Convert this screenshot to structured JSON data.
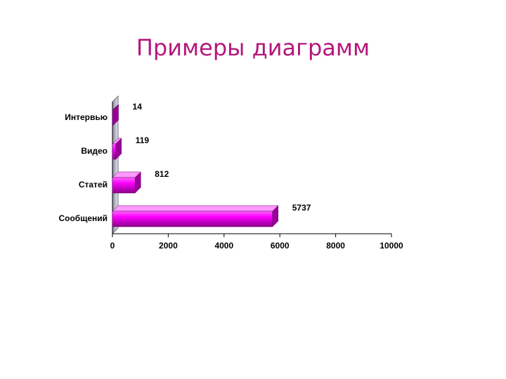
{
  "chart_data": {
    "type": "bar3d-horizontal",
    "title": "Примеры диаграмм",
    "categories": [
      "Интервью",
      "Видео",
      "Статей",
      "Сообщений"
    ],
    "values": [
      14,
      119,
      812,
      5737
    ],
    "color": "#e000e0",
    "xlim": [
      0,
      10000
    ],
    "xticks": [
      0,
      2000,
      4000,
      6000,
      8000,
      10000
    ]
  }
}
